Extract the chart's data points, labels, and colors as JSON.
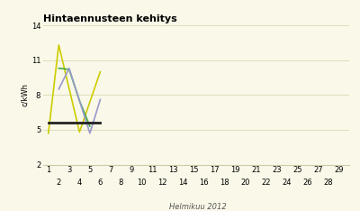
{
  "title": "Hintaennusteen kehitys",
  "xlabel": "Helmikuu 2012",
  "ylabel": "c/kWh",
  "background_color": "#faf8e8",
  "ylim": [
    2,
    14
  ],
  "xlim": [
    0.5,
    30
  ],
  "yticks": [
    2,
    5,
    8,
    11,
    14
  ],
  "xticks_top": [
    1,
    3,
    5,
    7,
    9,
    11,
    13,
    15,
    17,
    19,
    21,
    23,
    25,
    27,
    29
  ],
  "xticks_bottom": [
    2,
    4,
    6,
    8,
    10,
    12,
    14,
    16,
    18,
    20,
    22,
    24,
    26,
    28
  ],
  "lines": [
    {
      "color": "#cccc00",
      "x": [
        1,
        2,
        4,
        6
      ],
      "y": [
        4.7,
        12.3,
        4.8,
        10.0
      ],
      "linewidth": 1.2
    },
    {
      "color": "#44aa44",
      "x": [
        2,
        3,
        4,
        5
      ],
      "y": [
        10.3,
        10.2,
        7.5,
        5.3
      ],
      "linewidth": 1.2
    },
    {
      "color": "#9999cc",
      "x": [
        2,
        3,
        5,
        6
      ],
      "y": [
        8.5,
        10.3,
        4.7,
        7.6
      ],
      "linewidth": 1.2
    },
    {
      "color": "#222222",
      "x": [
        1,
        6
      ],
      "y": [
        5.6,
        5.6
      ],
      "linewidth": 2.0
    }
  ],
  "grid_color": "#ddddbb",
  "title_fontsize": 8,
  "label_fontsize": 6,
  "tick_fontsize": 6
}
